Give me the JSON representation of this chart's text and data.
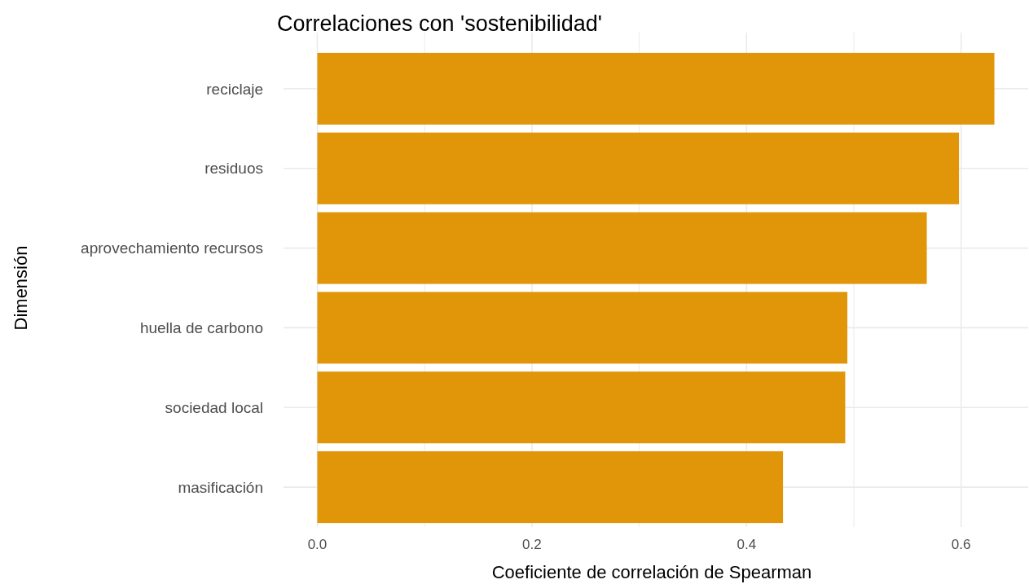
{
  "chart_data": {
    "type": "bar",
    "orientation": "horizontal",
    "title": "Correlaciones con 'sostenibilidad'",
    "xlabel": "Coeficiente de correlación de Spearman",
    "ylabel": "Dimensión",
    "categories": [
      "reciclaje",
      "residuos",
      "aprovechamiento recursos",
      "huella de carbono",
      "sociedad local",
      "masificación"
    ],
    "values": [
      0.631,
      0.598,
      0.568,
      0.494,
      0.492,
      0.434
    ],
    "color": "#e1960a",
    "xlim": [
      -0.0315,
      0.6625
    ],
    "xticks": [
      {
        "value": 0,
        "label": "0.0"
      },
      {
        "value": 0.1,
        "label": null
      },
      {
        "value": 0.2,
        "label": "0.2"
      },
      {
        "value": 0.3,
        "label": null
      },
      {
        "value": 0.4,
        "label": "0.4"
      },
      {
        "value": 0.5,
        "label": null
      },
      {
        "value": 0.6,
        "label": "0.6"
      }
    ],
    "grid": true
  }
}
